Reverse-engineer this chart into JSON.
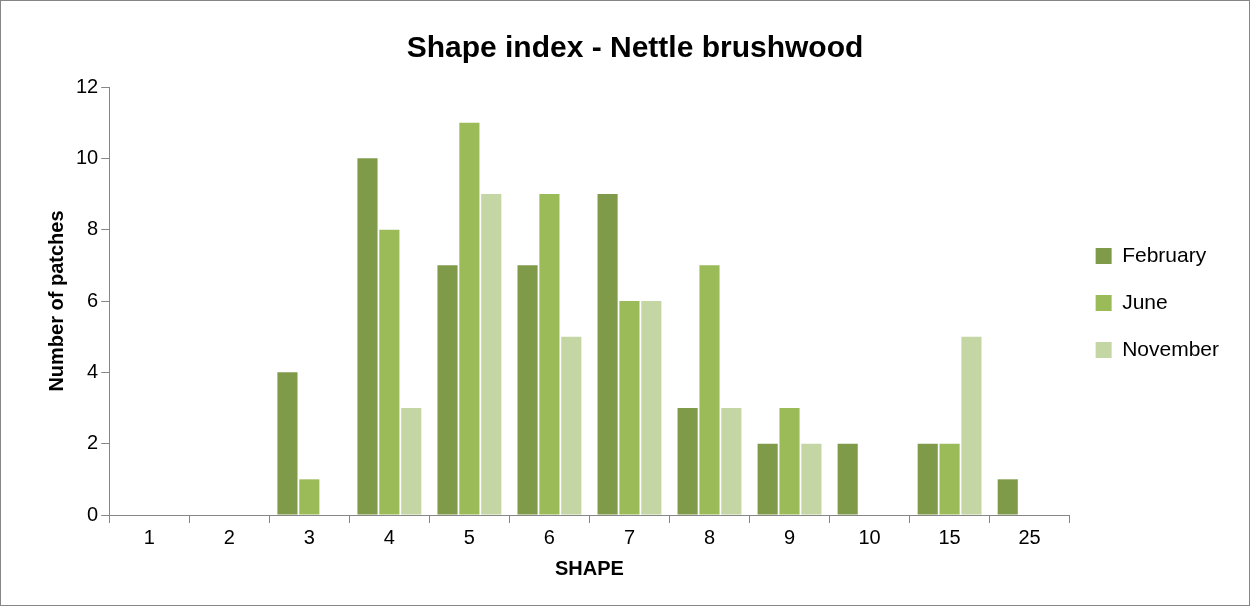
{
  "chart_data": {
    "type": "bar",
    "title": "Shape index - Nettle brushwood",
    "xlabel": "SHAPE",
    "ylabel": "Number of patches",
    "categories": [
      "1",
      "2",
      "3",
      "4",
      "5",
      "6",
      "7",
      "8",
      "9",
      "10",
      "15",
      "25"
    ],
    "series": [
      {
        "name": "February",
        "color": "#7f9b4a",
        "values": [
          0,
          0,
          4,
          10,
          7,
          7,
          9,
          3,
          2,
          2,
          2,
          1
        ]
      },
      {
        "name": "June",
        "color": "#9bbb59",
        "values": [
          0,
          0,
          1,
          8,
          11,
          9,
          6,
          7,
          3,
          0,
          2,
          0
        ]
      },
      {
        "name": "November",
        "color": "#c4d6a4",
        "values": [
          0,
          0,
          0,
          3,
          9,
          5,
          6,
          3,
          2,
          0,
          5,
          0
        ]
      }
    ],
    "ylim": [
      0,
      12
    ],
    "yticks": [
      0,
      2,
      4,
      6,
      8,
      10,
      12
    ],
    "grid": false,
    "legend": "right"
  }
}
